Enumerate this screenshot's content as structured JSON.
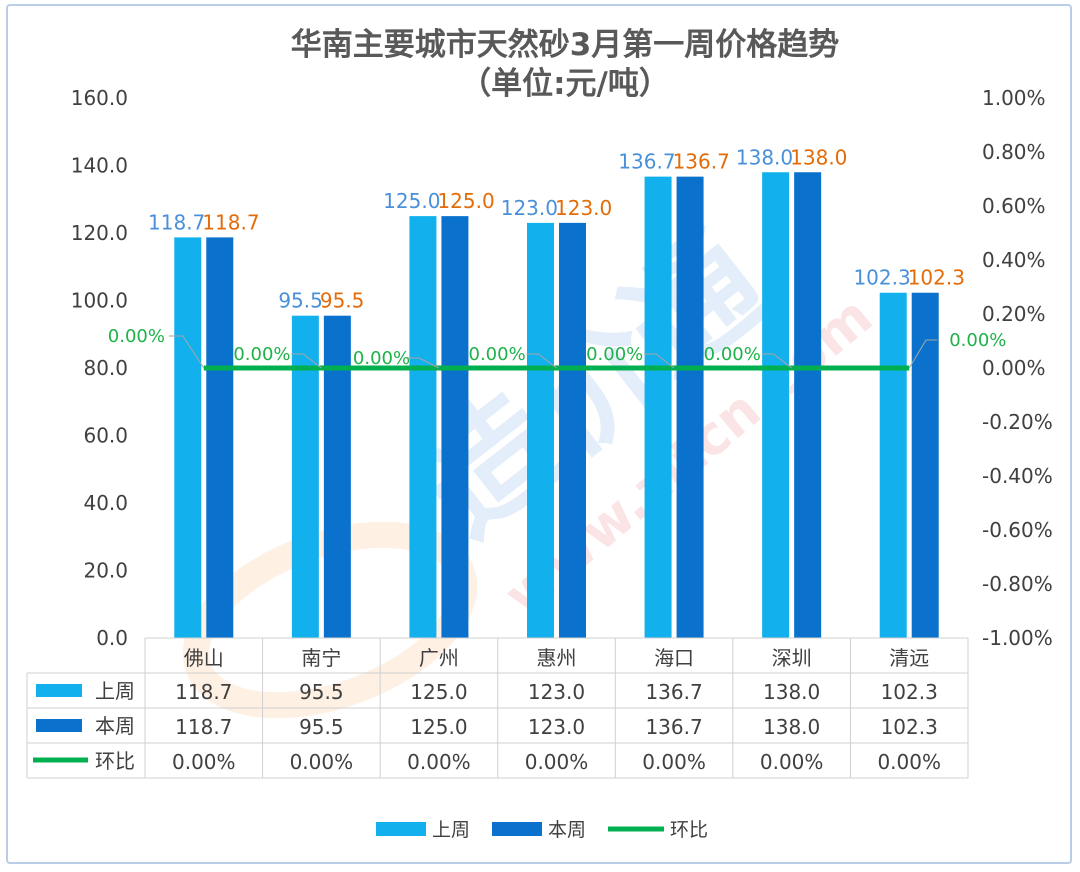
{
  "chart_data": {
    "type": "bar",
    "title": "华南主要城市天然砂3月第一周价格趋势",
    "subtitle": "（单位:元/吨）",
    "categories": [
      "佛山",
      "南宁",
      "广州",
      "惠州",
      "海口",
      "深圳",
      "清远"
    ],
    "series": [
      {
        "name": "上周",
        "kind": "bar",
        "axis": "left",
        "color": "#12b0ec",
        "values": [
          118.7,
          95.5,
          125.0,
          123.0,
          136.7,
          138.0,
          102.3
        ],
        "labels": [
          "118.7",
          "95.5",
          "125.0",
          "123.0",
          "136.7",
          "138.0",
          "102.3"
        ]
      },
      {
        "name": "本周",
        "kind": "bar",
        "axis": "left",
        "color": "#0a72cc",
        "values": [
          118.7,
          95.5,
          125.0,
          123.0,
          136.7,
          138.0,
          102.3
        ],
        "labels": [
          "118.7",
          "95.5",
          "125.0",
          "123.0",
          "136.7",
          "138.0",
          "102.3"
        ]
      },
      {
        "name": "环比",
        "kind": "line",
        "axis": "right",
        "color": "#00b050",
        "values": [
          0,
          0,
          0,
          0,
          0,
          0,
          0
        ],
        "labels": [
          "0.00%",
          "0.00%",
          "0.00%",
          "0.00%",
          "0.00%",
          "0.00%",
          "0.00%"
        ]
      }
    ],
    "y_left": {
      "min": 0,
      "max": 160,
      "step": 20,
      "ticks": [
        "0.0",
        "20.0",
        "40.0",
        "60.0",
        "80.0",
        "100.0",
        "120.0",
        "140.0",
        "160.0"
      ]
    },
    "y_right": {
      "min": -1,
      "max": 1,
      "step": 0.2,
      "ticks": [
        "-1.00%",
        "-0.80%",
        "-0.60%",
        "-0.40%",
        "-0.20%",
        "0.00%",
        "0.20%",
        "0.40%",
        "0.60%",
        "0.80%",
        "1.00%"
      ]
    },
    "data_table": true,
    "legend": {
      "position": "bottom",
      "items": [
        "上周",
        "本周",
        "环比"
      ]
    },
    "grid": false
  },
  "watermark": {
    "text": "www.zitcn.com",
    "logo_text": "造价通"
  }
}
